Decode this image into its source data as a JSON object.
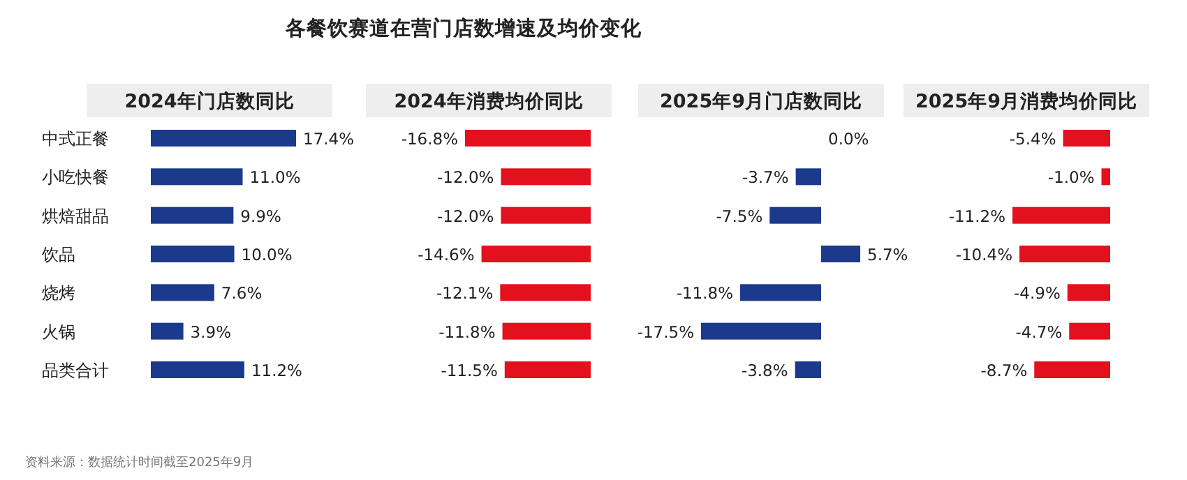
{
  "chart_data": [
    {
      "type": "bar",
      "orientation": "horizontal",
      "title": "2024年门店数同比",
      "categories": [
        "中式正餐",
        "小吃快餐",
        "烘焙甜品",
        "饮品",
        "烧烤",
        "火锅",
        "品类合计"
      ],
      "values": [
        17.4,
        11.0,
        9.9,
        10.0,
        7.6,
        3.9,
        11.2
      ],
      "value_labels": [
        "17.4%",
        "11.0%",
        "9.9%",
        "10.0%",
        "7.6%",
        "3.9%",
        "11.2%"
      ],
      "color": "#1c3a8c",
      "tick_labels": "y",
      "annotations": [
        "各餐饮赛道在营门店数增速及均价变化",
        "资料来源：数据统计时间截至2025年9月"
      ]
    },
    {
      "type": "bar",
      "orientation": "horizontal",
      "title": "2024年消费均价同比",
      "categories": [
        null,
        null,
        null,
        null,
        null,
        null,
        null
      ],
      "values": [
        -16.8,
        -12.0,
        -12.0,
        -14.6,
        -12.1,
        -11.8,
        -11.5
      ],
      "value_labels": [
        "-16.8%",
        "-12.0%",
        "-12.0%",
        "-14.6%",
        "-12.1%",
        "-11.8%",
        "-11.5%"
      ],
      "color": "#e3101e",
      "tick_labels": false
    },
    {
      "type": "bar",
      "orientation": "horizontal",
      "title": "2025年9月门店数同比",
      "categories": [
        null,
        null,
        null,
        null,
        null,
        null,
        null
      ],
      "values": [
        0.0,
        -3.7,
        -7.5,
        5.7,
        -11.8,
        -17.5,
        -3.8
      ],
      "value_labels": [
        "0.0%",
        "-3.7%",
        "-7.5%",
        "5.7%",
        "-11.8%",
        "-17.5%",
        "-3.8%"
      ],
      "color": "#1c3a8c",
      "tick_labels": false
    },
    {
      "type": "bar",
      "orientation": "horizontal",
      "title": "2025年9月消费均价同比",
      "categories": [
        null,
        null,
        null,
        null,
        null,
        null,
        null
      ],
      "values": [
        -5.4,
        -1.0,
        -11.2,
        -10.4,
        -4.9,
        -4.7,
        -8.7
      ],
      "value_labels": [
        "-5.4%",
        "-1.0%",
        "-11.2%",
        "-10.4%",
        "-4.9%",
        "-4.7%",
        "-8.7%"
      ],
      "color": "#e3101e",
      "tick_labels": false
    }
  ]
}
